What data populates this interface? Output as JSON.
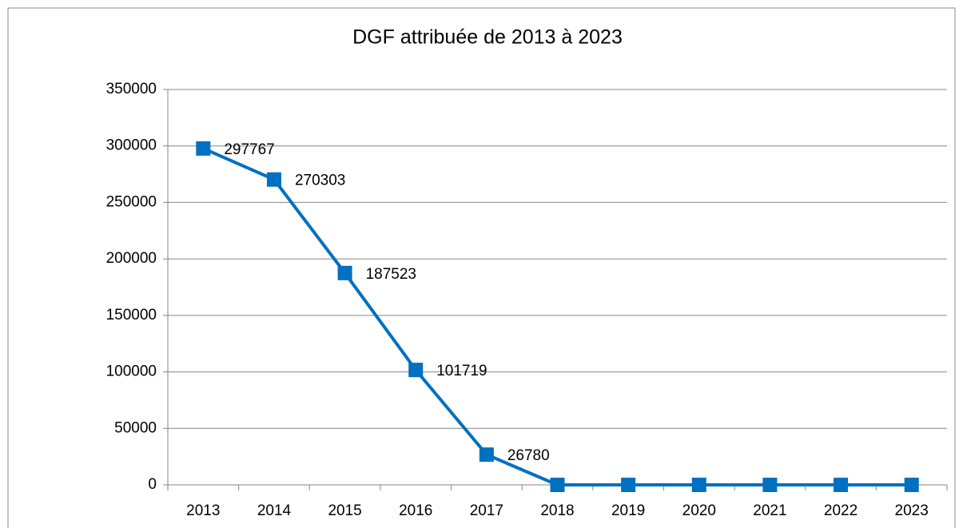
{
  "chart_data": {
    "type": "line",
    "title": "DGF attribuée de 2013 à 2023",
    "categories": [
      "2013",
      "2014",
      "2015",
      "2016",
      "2017",
      "2018",
      "2019",
      "2020",
      "2021",
      "2022",
      "2023"
    ],
    "values": [
      297767,
      270303,
      187523,
      101719,
      26780,
      0,
      0,
      0,
      0,
      0,
      0
    ],
    "value_labels": [
      "297767",
      "270303",
      "187523",
      "101719",
      "26780",
      null,
      null,
      null,
      null,
      null,
      null
    ],
    "color": "#0070c0",
    "ylim": [
      0,
      350000
    ],
    "yticks": [
      0,
      50000,
      100000,
      150000,
      200000,
      250000,
      300000,
      350000
    ],
    "grid": true
  }
}
